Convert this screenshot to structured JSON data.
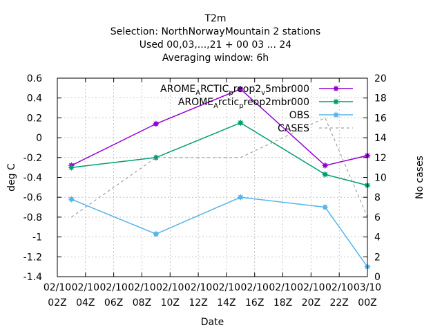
{
  "chart_data": {
    "type": "line",
    "title_lines": [
      "T2m",
      "Selection: NorthNorwayMountain       2 stations",
      "Used  00,03,...,21  + 00 03 ... 24",
      "Averaging window:  6h"
    ],
    "xlabel": "Date",
    "ylabel": "deg C",
    "y2label": "No cases",
    "xlim": [
      2,
      24
    ],
    "ylim": [
      -1.4,
      0.6
    ],
    "y2lim": [
      0,
      20
    ],
    "x_ticks": [
      {
        "x": 2,
        "line1": "02/10",
        "line2": "02Z"
      },
      {
        "x": 4,
        "line1": "02/10",
        "line2": "04Z"
      },
      {
        "x": 6,
        "line1": "02/10",
        "line2": "06Z"
      },
      {
        "x": 8,
        "line1": "02/10",
        "line2": "08Z"
      },
      {
        "x": 10,
        "line1": "02/10",
        "line2": "10Z"
      },
      {
        "x": 12,
        "line1": "02/10",
        "line2": "12Z"
      },
      {
        "x": 14,
        "line1": "02/10",
        "line2": "14Z"
      },
      {
        "x": 16,
        "line1": "02/10",
        "line2": "16Z"
      },
      {
        "x": 18,
        "line1": "02/10",
        "line2": "18Z"
      },
      {
        "x": 20,
        "line1": "02/10",
        "line2": "20Z"
      },
      {
        "x": 22,
        "line1": "02/10",
        "line2": "22Z"
      },
      {
        "x": 24,
        "line1": "03/10",
        "line2": "00Z"
      }
    ],
    "y_ticks": [
      "0.6",
      "0.4",
      "0.2",
      "0",
      "-0.2",
      "-0.4",
      "-0.6",
      "-0.8",
      "-1",
      "-1.2",
      "-1.4"
    ],
    "y2_ticks": [
      "20",
      "18",
      "16",
      "14",
      "12",
      "10",
      "8",
      "6",
      "4",
      "2",
      "0"
    ],
    "grid": true,
    "legend_position": "top-right",
    "series": [
      {
        "name": "AROME_ARCTIC_preop2_v5mbr000",
        "legend_parts": [
          {
            "t": "AROME",
            "sub": false
          },
          {
            "t": "A",
            "sub": true
          },
          {
            "t": "RCTIC",
            "sub": false
          },
          {
            "t": "p",
            "sub": true
          },
          {
            "t": "reop2",
            "sub": false
          },
          {
            "t": "v",
            "sub": true
          },
          {
            "t": "5mbr000",
            "sub": false
          }
        ],
        "color": "#9400d3",
        "axis": "y",
        "style": "solid",
        "marker": true,
        "x": [
          3,
          9,
          15,
          21,
          24
        ],
        "values": [
          -0.28,
          0.14,
          0.49,
          -0.28,
          -0.18
        ]
      },
      {
        "name": "AROME_Arctic_preop2mbr000",
        "legend_parts": [
          {
            "t": "AROME",
            "sub": false
          },
          {
            "t": "A",
            "sub": true
          },
          {
            "t": "rctic",
            "sub": false
          },
          {
            "t": "p",
            "sub": true
          },
          {
            "t": "reop2mbr000",
            "sub": false
          }
        ],
        "color": "#009e73",
        "axis": "y",
        "style": "solid",
        "marker": true,
        "x": [
          3,
          9,
          15,
          21,
          24
        ],
        "values": [
          -0.3,
          -0.2,
          0.15,
          -0.37,
          -0.48
        ]
      },
      {
        "name": "OBS",
        "legend_parts": [
          {
            "t": "OBS",
            "sub": false
          }
        ],
        "color": "#56b4e9",
        "axis": "y",
        "style": "solid",
        "marker": true,
        "x": [
          3,
          9,
          15,
          21,
          24
        ],
        "values": [
          -0.62,
          -0.97,
          -0.6,
          -0.7,
          -1.3
        ]
      },
      {
        "name": "CASES",
        "legend_parts": [
          {
            "t": "CASES",
            "sub": false
          }
        ],
        "color": "#a0a0a0",
        "axis": "y2",
        "style": "dashed",
        "marker": false,
        "x": [
          3,
          9,
          15,
          21,
          24
        ],
        "values": [
          6,
          12,
          12,
          16,
          6
        ]
      }
    ]
  }
}
